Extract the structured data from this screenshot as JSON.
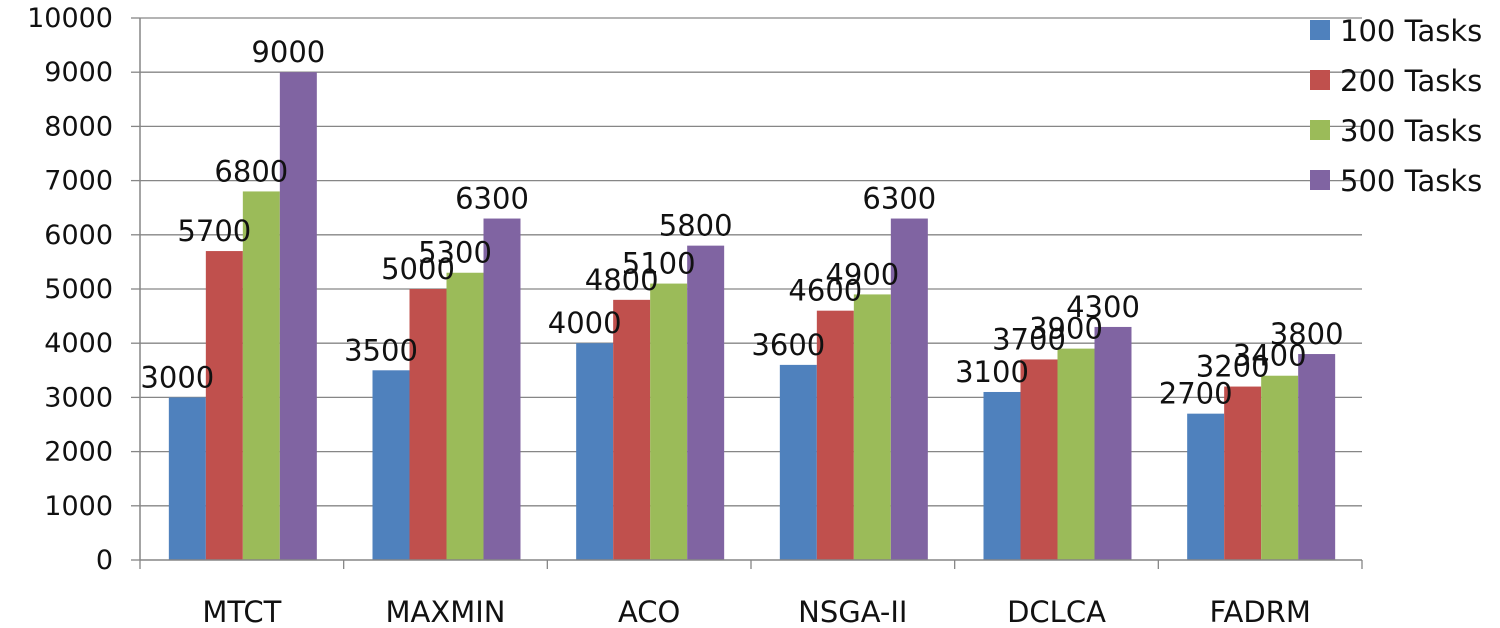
{
  "chart_data": {
    "type": "bar",
    "categories": [
      "MTCT",
      "MAXMIN",
      "ACO",
      "NSGA-II",
      "DCLCA",
      "FADRM"
    ],
    "series": [
      {
        "name": "100 Tasks",
        "color": "#4f81bd",
        "values": [
          3000,
          3500,
          4000,
          3600,
          3100,
          2700
        ]
      },
      {
        "name": "200 Tasks",
        "color": "#c0504d",
        "values": [
          5700,
          5000,
          4800,
          4600,
          3700,
          3200
        ]
      },
      {
        "name": "300 Tasks",
        "color": "#9bbb59",
        "values": [
          6800,
          5300,
          5100,
          4900,
          3900,
          3400
        ]
      },
      {
        "name": "500 Tasks",
        "color": "#8064a2",
        "values": [
          9000,
          6300,
          5800,
          6300,
          4300,
          3800
        ]
      }
    ],
    "yticks": [
      "0",
      "1000",
      "2000",
      "3000",
      "4000",
      "5000",
      "6000",
      "7000",
      "8000",
      "9000",
      "10000"
    ],
    "ylim": [
      0,
      10000
    ],
    "title": "",
    "xlabel": "",
    "ylabel": "",
    "grid": true,
    "legend": "top-right",
    "data_labels": true
  }
}
